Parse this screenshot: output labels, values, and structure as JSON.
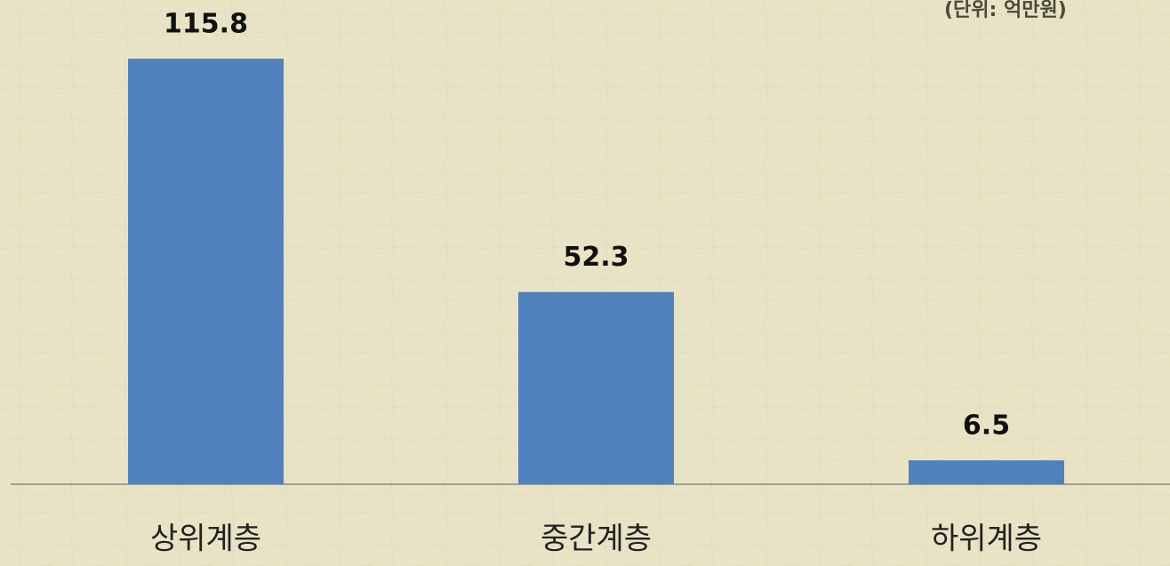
{
  "chart_data": {
    "type": "bar",
    "annotation": "(단위: 억만원)",
    "categories": [
      "상위계층",
      "중간계층",
      "하위계층"
    ],
    "values": [
      115.8,
      52.3,
      6.5
    ],
    "color": "#4f81bd"
  }
}
